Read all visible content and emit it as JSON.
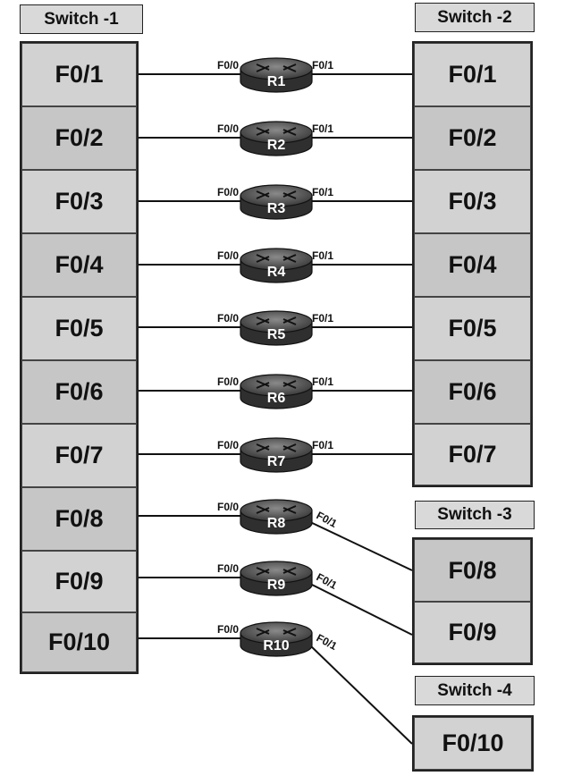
{
  "switches": {
    "s1": {
      "title": "Switch -1",
      "ports": [
        "F0/1",
        "F0/2",
        "F0/3",
        "F0/4",
        "F0/5",
        "F0/6",
        "F0/7",
        "F0/8",
        "F0/9",
        "F0/10"
      ]
    },
    "s2": {
      "title": "Switch -2",
      "ports": [
        "F0/1",
        "F0/2",
        "F0/3",
        "F0/4",
        "F0/5",
        "F0/6",
        "F0/7"
      ]
    },
    "s3": {
      "title": "Switch -3",
      "ports": [
        "F0/8",
        "F0/9"
      ]
    },
    "s4": {
      "title": "Switch -4",
      "ports": [
        "F0/10"
      ]
    }
  },
  "routers": [
    {
      "name": "R1",
      "left_if": "F0/0",
      "right_if": "F0/1"
    },
    {
      "name": "R2",
      "left_if": "F0/0",
      "right_if": "F0/1"
    },
    {
      "name": "R3",
      "left_if": "F0/0",
      "right_if": "F0/1"
    },
    {
      "name": "R4",
      "left_if": "F0/0",
      "right_if": "F0/1"
    },
    {
      "name": "R5",
      "left_if": "F0/0",
      "right_if": "F0/1"
    },
    {
      "name": "R6",
      "left_if": "F0/0",
      "right_if": "F0/1"
    },
    {
      "name": "R7",
      "left_if": "F0/0",
      "right_if": "F0/1"
    },
    {
      "name": "R8",
      "left_if": "F0/0",
      "right_if": "F0/1"
    },
    {
      "name": "R9",
      "left_if": "F0/0",
      "right_if": "F0/1"
    },
    {
      "name": "R10",
      "left_if": "F0/0",
      "right_if": "F0/1"
    }
  ]
}
